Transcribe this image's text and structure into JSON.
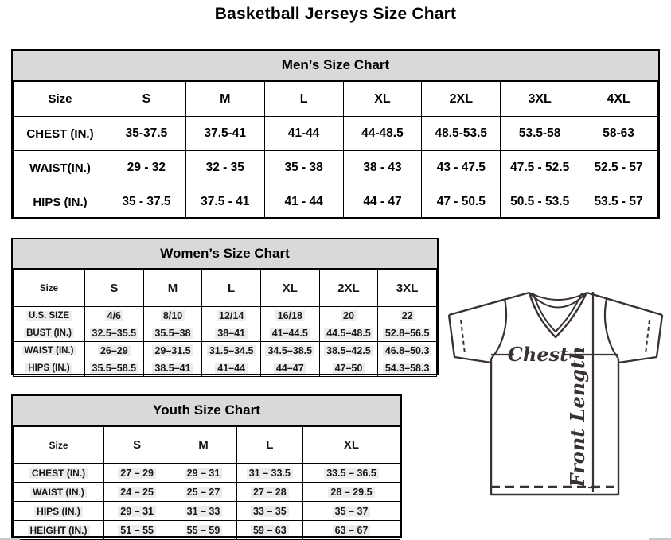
{
  "page": {
    "title": "Basketball Jerseys Size Chart"
  },
  "men_table": {
    "title": "Men’s Size Chart",
    "columns": [
      "Size",
      "S",
      "M",
      "L",
      "XL",
      "2XL",
      "3XL",
      "4XL"
    ],
    "rows": [
      {
        "label": "CHEST (IN.)",
        "values": [
          "35-37.5",
          "37.5-41",
          "41-44",
          "44-48.5",
          "48.5-53.5",
          "53.5-58",
          "58-63"
        ]
      },
      {
        "label": "WAIST(IN.)",
        "values": [
          "29 - 32",
          "32 - 35",
          "35 - 38",
          "38 - 43",
          "43 - 47.5",
          "47.5 - 52.5",
          "52.5 - 57"
        ]
      },
      {
        "label": "HIPS (IN.)",
        "values": [
          "35 - 37.5",
          "37.5 - 41",
          "41 - 44",
          "44 - 47",
          "47 - 50.5",
          "50.5 - 53.5",
          "53.5 - 57"
        ]
      }
    ]
  },
  "women_table": {
    "title": "Women’s Size Chart",
    "columns": [
      "Size",
      "S",
      "M",
      "L",
      "XL",
      "2XL",
      "3XL"
    ],
    "rows": [
      {
        "label": "U.S. SIZE",
        "values": [
          "4/6",
          "8/10",
          "12/14",
          "16/18",
          "20",
          "22"
        ]
      },
      {
        "label": "BUST (IN.)",
        "values": [
          "32.5–35.5",
          "35.5–38",
          "38–41",
          "41–44.5",
          "44.5–48.5",
          "52.8–56.5"
        ]
      },
      {
        "label": "WAIST (IN.)",
        "values": [
          "26–29",
          "29–31.5",
          "31.5–34.5",
          "34.5–38.5",
          "38.5–42.5",
          "46.8–50.3"
        ]
      },
      {
        "label": "HIPS (IN.)",
        "values": [
          "35.5–58.5",
          "38.5–41",
          "41–44",
          "44–47",
          "47–50",
          "54.3–58.3"
        ]
      }
    ]
  },
  "youth_table": {
    "title": "Youth Size Chart",
    "columns": [
      "Size",
      "S",
      "M",
      "L",
      "XL"
    ],
    "rows": [
      {
        "label": "CHEST (IN.)",
        "values": [
          "27 – 29",
          "29 – 31",
          "31 – 33.5",
          "33.5 – 36.5"
        ]
      },
      {
        "label": "WAIST (IN.)",
        "values": [
          "24 – 25",
          "25 – 27",
          "27 – 28",
          "28 – 29.5"
        ]
      },
      {
        "label": "HIPS (IN.)",
        "values": [
          "29 – 31",
          "31 – 33",
          "33 – 35",
          "35 – 37"
        ]
      },
      {
        "label": "HEIGHT (IN.)",
        "values": [
          "51 – 55",
          "55 – 59",
          "59 – 63",
          "63 – 67"
        ]
      }
    ]
  },
  "jersey_diagram": {
    "chest_label": "Chest",
    "front_length_label": "Front Length"
  },
  "colors": {
    "table_header_fill": "#d9d9d9",
    "table_border": "#000000",
    "cell_shading": "#ececec",
    "diagram_stroke": "#3a3133"
  }
}
